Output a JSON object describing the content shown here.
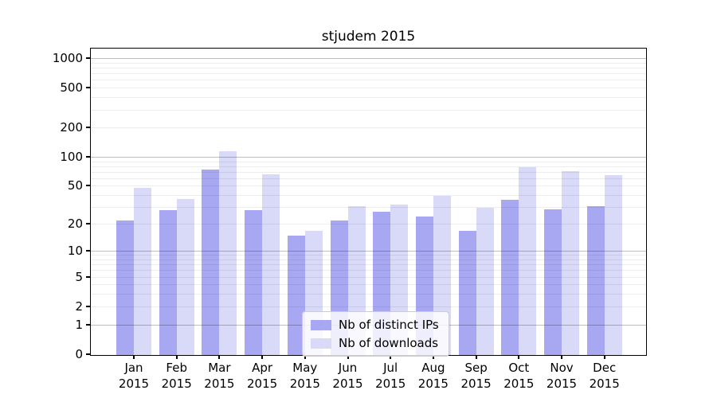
{
  "chart_data": {
    "type": "bar",
    "title": "stjudem 2015",
    "categories": [
      "Jan",
      "Feb",
      "Mar",
      "Apr",
      "May",
      "Jun",
      "Jul",
      "Aug",
      "Sep",
      "Oct",
      "Nov",
      "Dec"
    ],
    "year_label": "2015",
    "series": [
      {
        "name": "Nb of distinct IPs",
        "color": "#a8a8f2",
        "values": [
          22,
          28,
          75,
          28,
          15,
          22,
          27,
          24,
          17,
          36,
          29,
          31
        ]
      },
      {
        "name": "Nb of downloads",
        "color": "#d9d9f8",
        "values": [
          48,
          37,
          117,
          67,
          17,
          31,
          32,
          40,
          30,
          80,
          72,
          66
        ]
      }
    ],
    "xlabel": "",
    "ylabel": "",
    "y_axis": {
      "scale": "log-like",
      "tick_values": [
        0,
        1,
        2,
        5,
        10,
        20,
        50,
        100,
        200,
        500,
        1000
      ],
      "tick_labels": [
        "0",
        "1",
        "2",
        "5",
        "10",
        "20",
        "50",
        "100",
        "200",
        "500",
        "1000"
      ],
      "major_gridline_values": [
        1,
        10,
        100,
        1000
      ],
      "ylim_top_approx": 1280
    },
    "grid": true,
    "legend": {
      "position": "lower-center",
      "entries": [
        "Nb of distinct IPs",
        "Nb of downloads"
      ]
    }
  }
}
